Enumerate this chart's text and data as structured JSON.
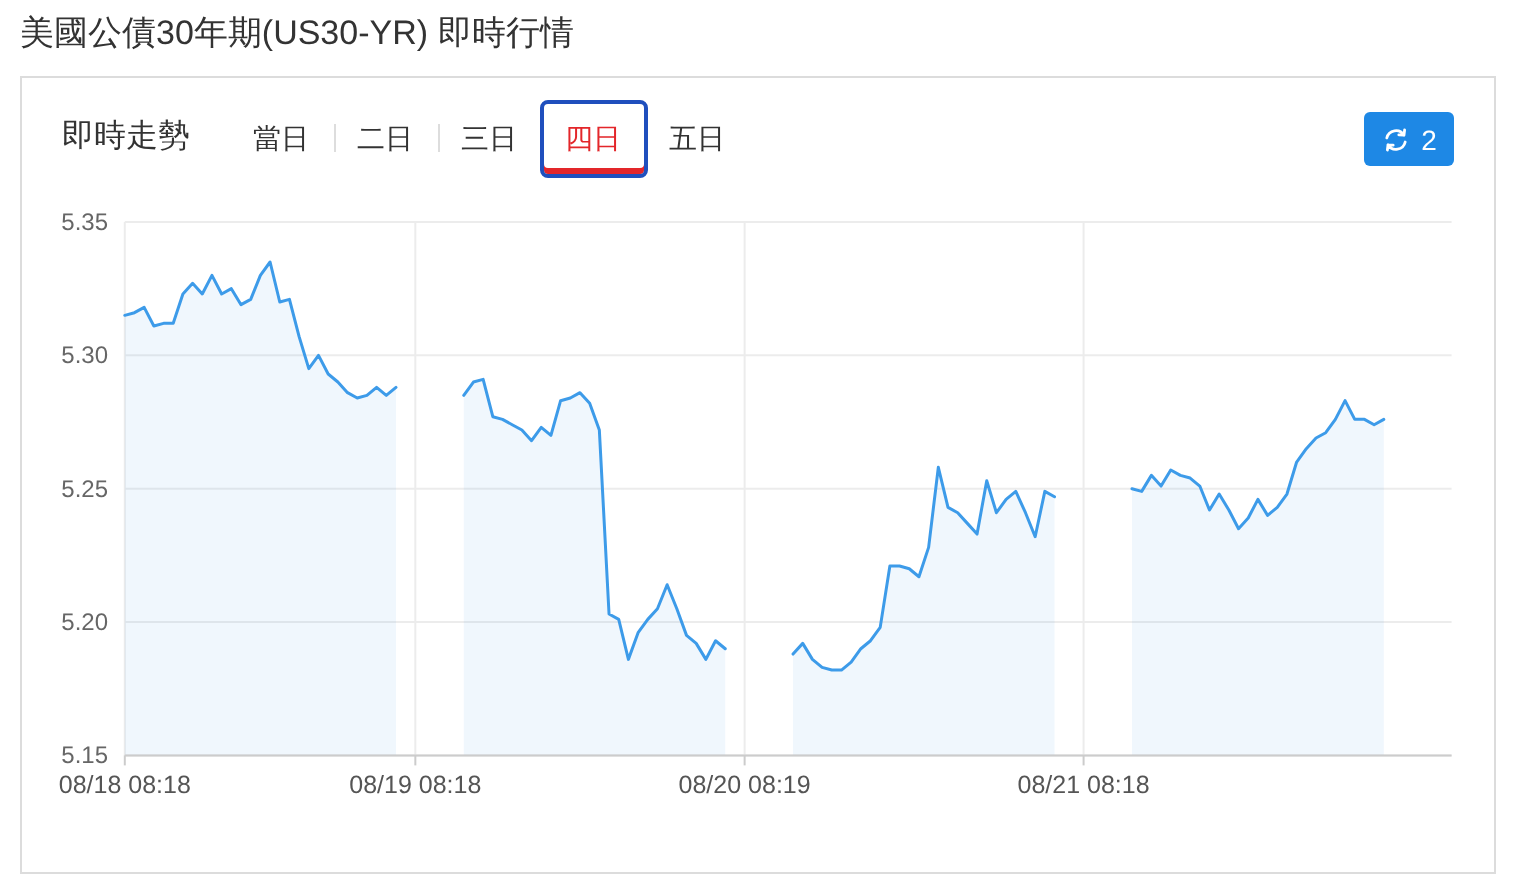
{
  "chart_data": {
    "type": "area",
    "title": "美國公債30年期(US30-YR) 即時行情",
    "subtitle": "即時走勢",
    "annotations": [
      "當日",
      "二日",
      "三日",
      "四日",
      "五日",
      "2"
    ],
    "categories": [
      "08/18 08:18",
      null,
      null,
      null,
      null,
      null,
      null,
      null,
      null,
      null,
      null,
      null,
      null,
      null,
      null,
      null,
      null,
      null,
      null,
      null,
      null,
      null,
      null,
      null,
      null,
      null,
      null,
      null,
      null,
      null,
      "08/19 08:18",
      null,
      null,
      null,
      null,
      null,
      null,
      null,
      null,
      null,
      null,
      null,
      null,
      null,
      null,
      null,
      null,
      null,
      null,
      null,
      null,
      null,
      null,
      null,
      null,
      null,
      null,
      null,
      null,
      null,
      null,
      null,
      null,
      null,
      "08/20 08:19",
      null,
      null,
      null,
      null,
      null,
      null,
      null,
      null,
      null,
      null,
      null,
      null,
      null,
      null,
      null,
      null,
      null,
      null,
      null,
      null,
      null,
      null,
      null,
      null,
      null,
      null,
      null,
      null,
      null,
      null,
      null,
      null,
      null,
      null,
      "08/21 08:18",
      null,
      null,
      null,
      null,
      null,
      null,
      null,
      null,
      null,
      null,
      null,
      null,
      null,
      null,
      null,
      null,
      null,
      null,
      null,
      null,
      null,
      null,
      null,
      null,
      null,
      null,
      null,
      null,
      null,
      null,
      null,
      null,
      null,
      null,
      null,
      null,
      null,
      null
    ],
    "values": [
      5.315,
      5.316,
      5.318,
      5.311,
      5.312,
      5.312,
      5.323,
      5.327,
      5.323,
      5.33,
      5.323,
      5.325,
      5.319,
      5.321,
      5.33,
      5.335,
      5.32,
      5.321,
      5.307,
      5.295,
      5.3,
      5.293,
      5.29,
      5.286,
      5.284,
      5.285,
      5.288,
      5.285,
      5.288,
      null,
      null,
      null,
      null,
      null,
      null,
      5.285,
      5.29,
      5.291,
      5.277,
      5.276,
      5.274,
      5.272,
      5.268,
      5.273,
      5.27,
      5.283,
      5.284,
      5.286,
      5.282,
      5.272,
      5.203,
      5.201,
      5.186,
      5.196,
      5.201,
      5.205,
      5.214,
      5.205,
      5.195,
      5.192,
      5.186,
      5.193,
      5.19,
      null,
      null,
      null,
      null,
      null,
      null,
      5.188,
      5.192,
      5.186,
      5.183,
      5.182,
      5.182,
      5.185,
      5.19,
      5.193,
      5.198,
      5.221,
      5.221,
      5.22,
      5.217,
      5.228,
      5.258,
      5.243,
      5.241,
      5.237,
      5.233,
      5.253,
      5.241,
      5.246,
      5.249,
      5.241,
      5.232,
      5.249,
      5.247,
      null,
      null,
      null,
      null,
      null,
      null,
      null,
      5.25,
      5.249,
      5.255,
      5.251,
      5.257,
      5.255,
      5.254,
      5.251,
      5.242,
      5.248,
      5.242,
      5.235,
      5.239,
      5.246,
      5.24,
      5.243,
      5.248,
      5.26,
      5.265,
      5.269,
      5.271,
      5.276,
      5.283,
      5.276,
      5.276,
      5.274,
      5.276,
      null,
      null,
      null,
      null,
      null,
      null,
      null
    ],
    "color": "#3d9be9",
    "ylim": [
      5.15,
      5.35
    ],
    "yticks": [
      5.15,
      {
        "value": 5.2,
        "label": "5.20"
      },
      5.25,
      {
        "value": 5.3,
        "label": "5.30"
      },
      5.35
    ],
    "grid": true
  }
}
